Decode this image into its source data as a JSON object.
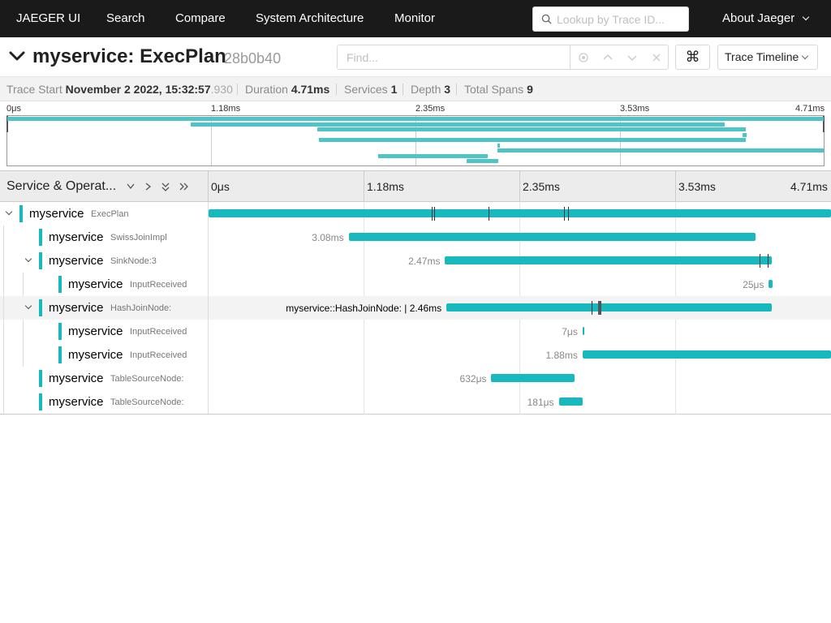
{
  "nav": {
    "brand": "JAEGER UI",
    "links": [
      "Search",
      "Compare",
      "System Architecture",
      "Monitor"
    ],
    "search_placeholder": "Lookup by Trace ID...",
    "about": "About Jaeger"
  },
  "trace": {
    "title": "myservice: ExecPlan",
    "trace_id": "28b0b40",
    "find_placeholder": "Find...",
    "shortcut_icon": "⌘",
    "view_label": "Trace Timeline"
  },
  "summary": {
    "trace_start_label": "Trace Start",
    "trace_start_value": "November 2 2022, 15:32:57",
    "trace_start_ms": ".930",
    "duration_label": "Duration",
    "duration_value": "4.71ms",
    "services_label": "Services",
    "services_value": "1",
    "depth_label": "Depth",
    "depth_value": "3",
    "total_spans_label": "Total Spans",
    "total_spans_value": "9"
  },
  "minimap": {
    "ticks": [
      "0μs",
      "1.18ms",
      "2.35ms",
      "3.53ms",
      "4.71ms"
    ]
  },
  "header": {
    "service_operation": "Service & Operat...",
    "ticks": [
      "0μs",
      "1.18ms",
      "2.35ms",
      "3.53ms",
      "4.71ms"
    ]
  },
  "spans": [
    {
      "service": "myservice",
      "operation": "ExecPlan",
      "depth": 0,
      "toggle": true,
      "start_ms": 0.0,
      "duration_ms": 4.71,
      "duration_label": ""
    },
    {
      "service": "myservice",
      "operation": "SwissJoinImpl",
      "depth": 1,
      "toggle": false,
      "start_ms": 1.06,
      "duration_ms": 3.08,
      "duration_label": "3.08ms"
    },
    {
      "service": "myservice",
      "operation": "SinkNode:3",
      "depth": 1,
      "toggle": true,
      "start_ms": 1.79,
      "duration_ms": 2.47,
      "duration_label": "2.47ms"
    },
    {
      "service": "myservice",
      "operation": "InputReceived",
      "depth": 2,
      "toggle": false,
      "start_ms": 4.24,
      "duration_ms": 0.025,
      "duration_label": "25μs"
    },
    {
      "service": "myservice",
      "operation": "HashJoinNode:",
      "depth": 1,
      "toggle": true,
      "start_ms": 1.8,
      "duration_ms": 2.46,
      "duration_label": "myservice::HashJoinNode: | 2.46ms",
      "hover": true
    },
    {
      "service": "myservice",
      "operation": "InputReceived",
      "depth": 2,
      "toggle": false,
      "start_ms": 2.83,
      "duration_ms": 0.007,
      "duration_label": "7μs"
    },
    {
      "service": "myservice",
      "operation": "InputReceived",
      "depth": 2,
      "toggle": false,
      "start_ms": 2.83,
      "duration_ms": 1.88,
      "duration_label": "1.88ms"
    },
    {
      "service": "myservice",
      "operation": "TableSourceNode:",
      "depth": 1,
      "toggle": false,
      "start_ms": 2.14,
      "duration_ms": 0.632,
      "duration_label": "632μs"
    },
    {
      "service": "myservice",
      "operation": "TableSourceNode:",
      "depth": 1,
      "toggle": false,
      "start_ms": 2.65,
      "duration_ms": 0.181,
      "duration_label": "181μs"
    }
  ],
  "colors": {
    "nav_bg": "#1a1a1a",
    "span_color": "#17b8be",
    "minimap_bar": "#4fc4c6"
  }
}
